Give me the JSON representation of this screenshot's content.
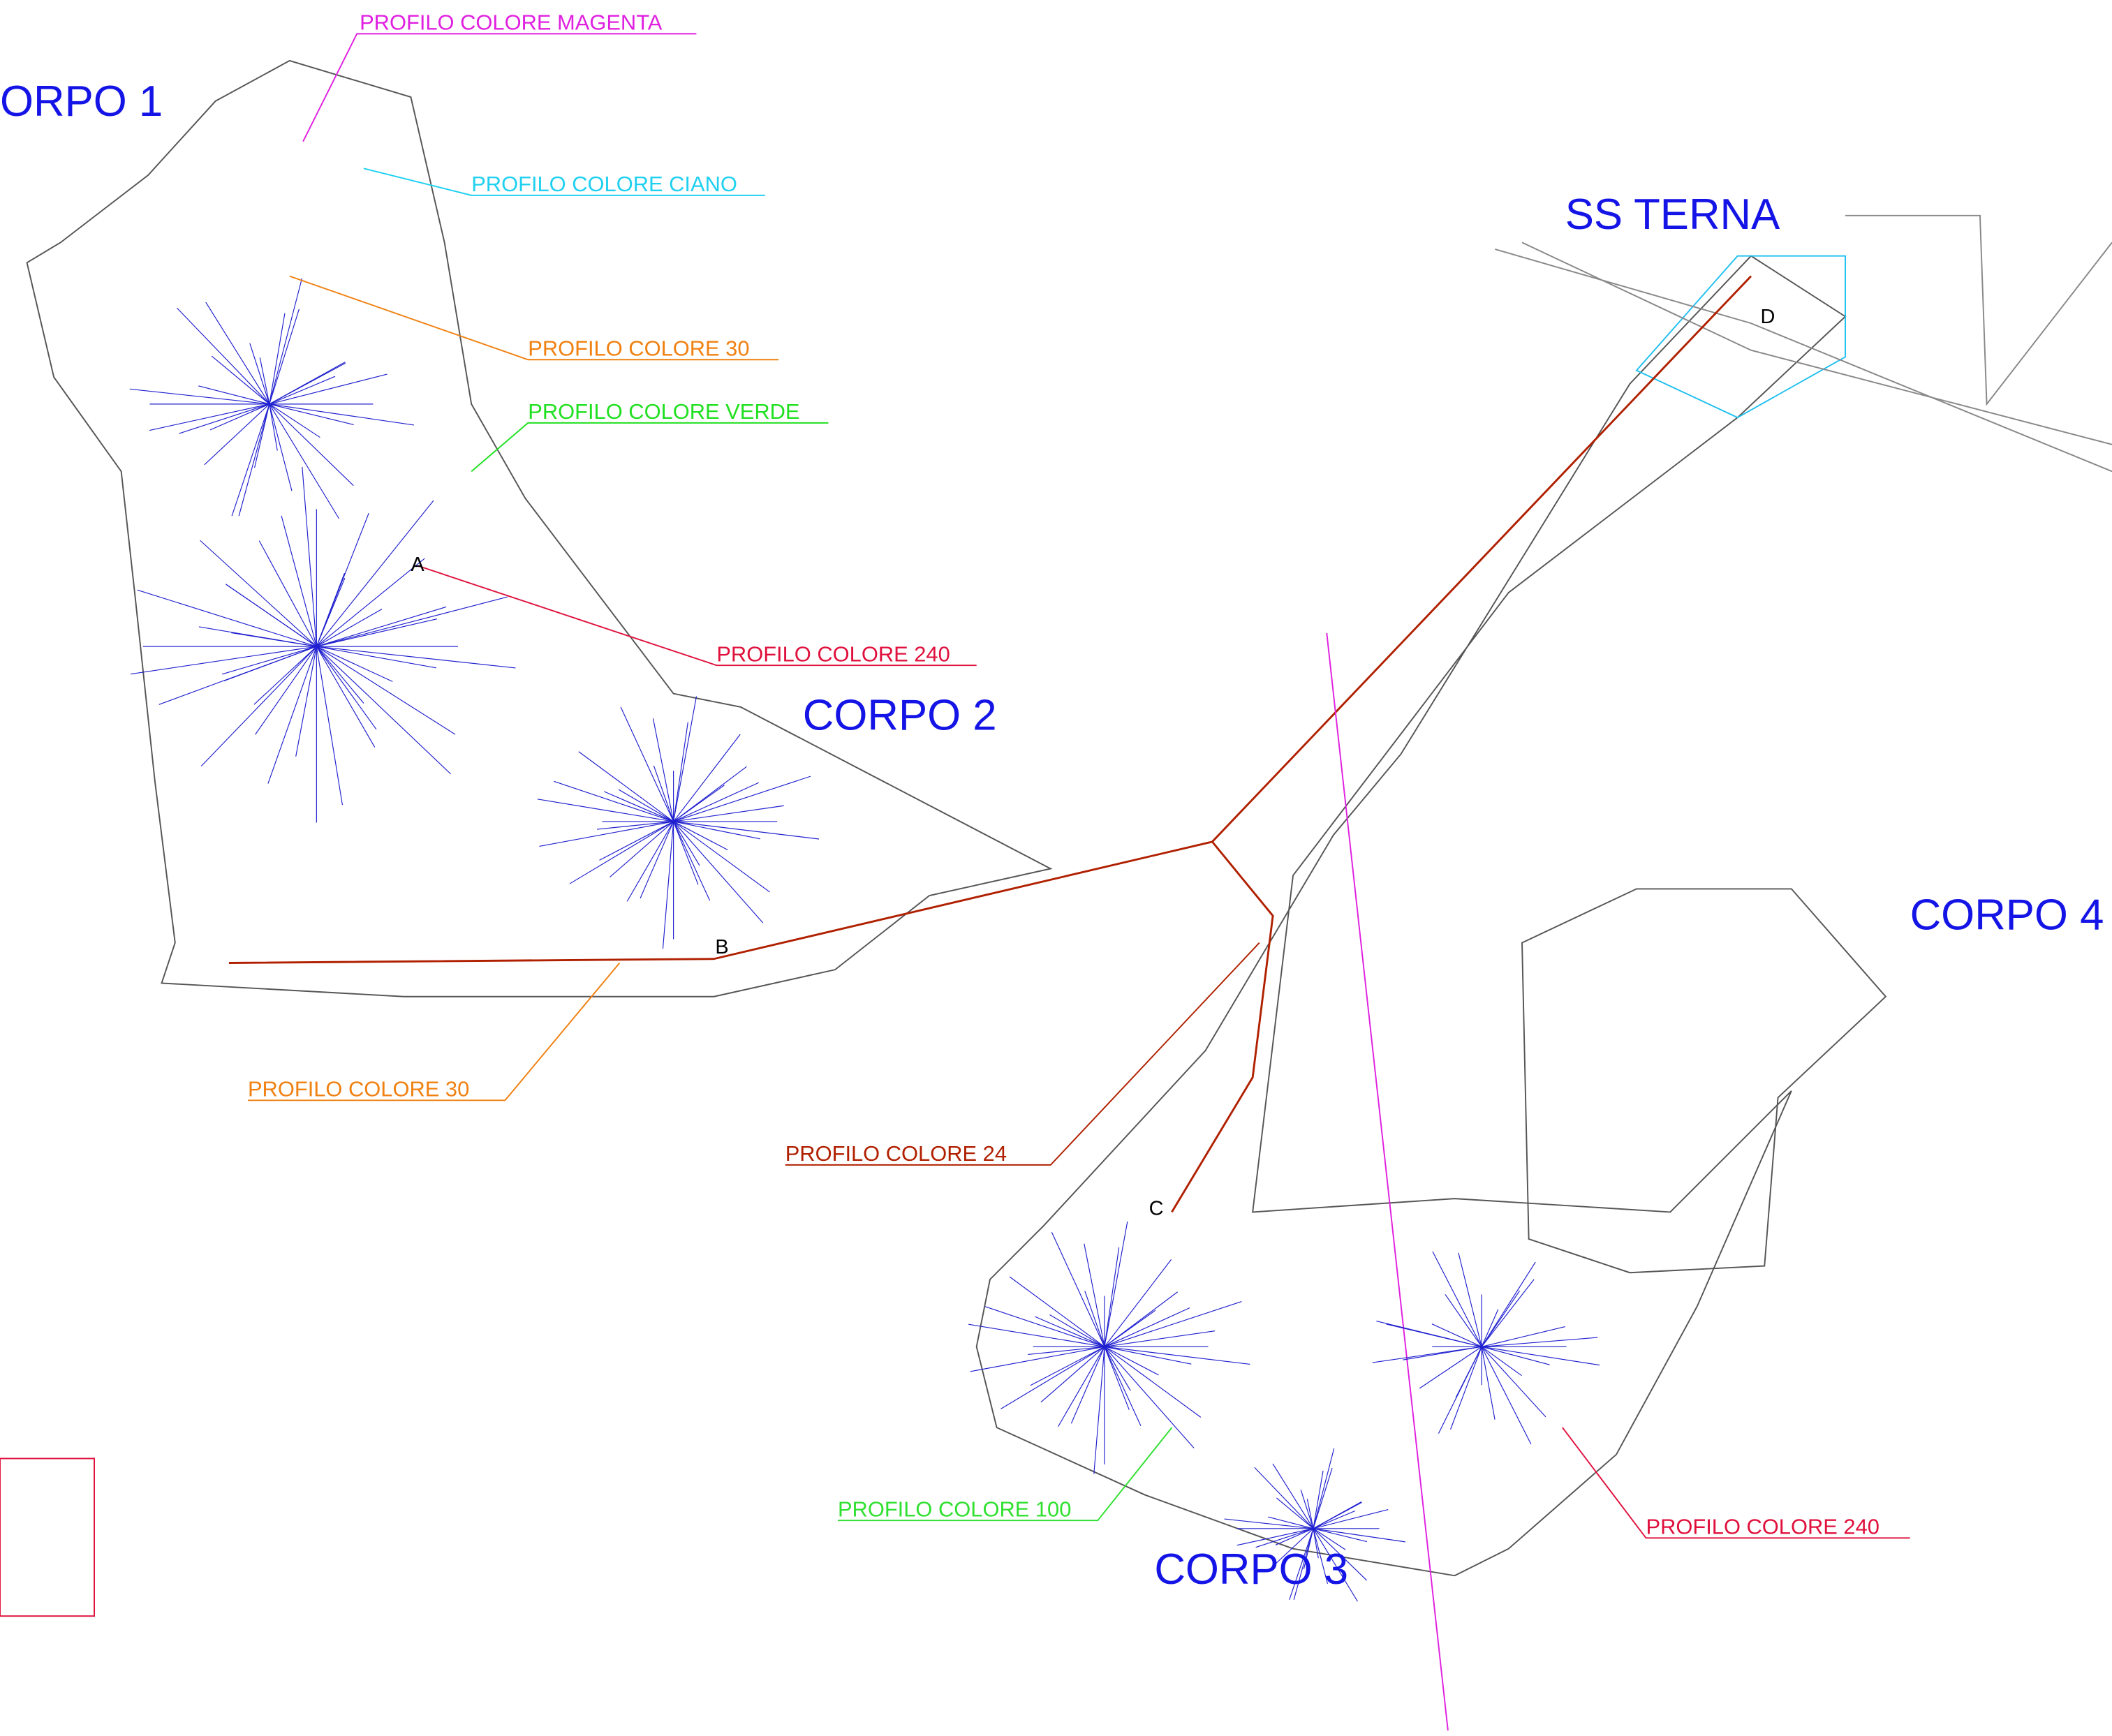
{
  "titles": {
    "corpo_1": "ORPO 1",
    "corpo_2": "CORPO 2",
    "corpo_3": "CORPO 3",
    "corpo_4": "CORPO 4",
    "ss_terna": "SS TERNA"
  },
  "profiles": [
    "PROFILO COLORE MAGENTA",
    "PROFILO COLORE CIANO",
    "PROFILO COLORE 30",
    "PROFILO COLORE VERDE",
    "PROFILO COLORE 240",
    "PROFILO COLORE 30",
    "PROFILO COLORE 24",
    "PROFILO COLORE 100",
    "PROFILO COLORE 240"
  ],
  "points": [
    "A",
    "B",
    "C",
    "D"
  ]
}
